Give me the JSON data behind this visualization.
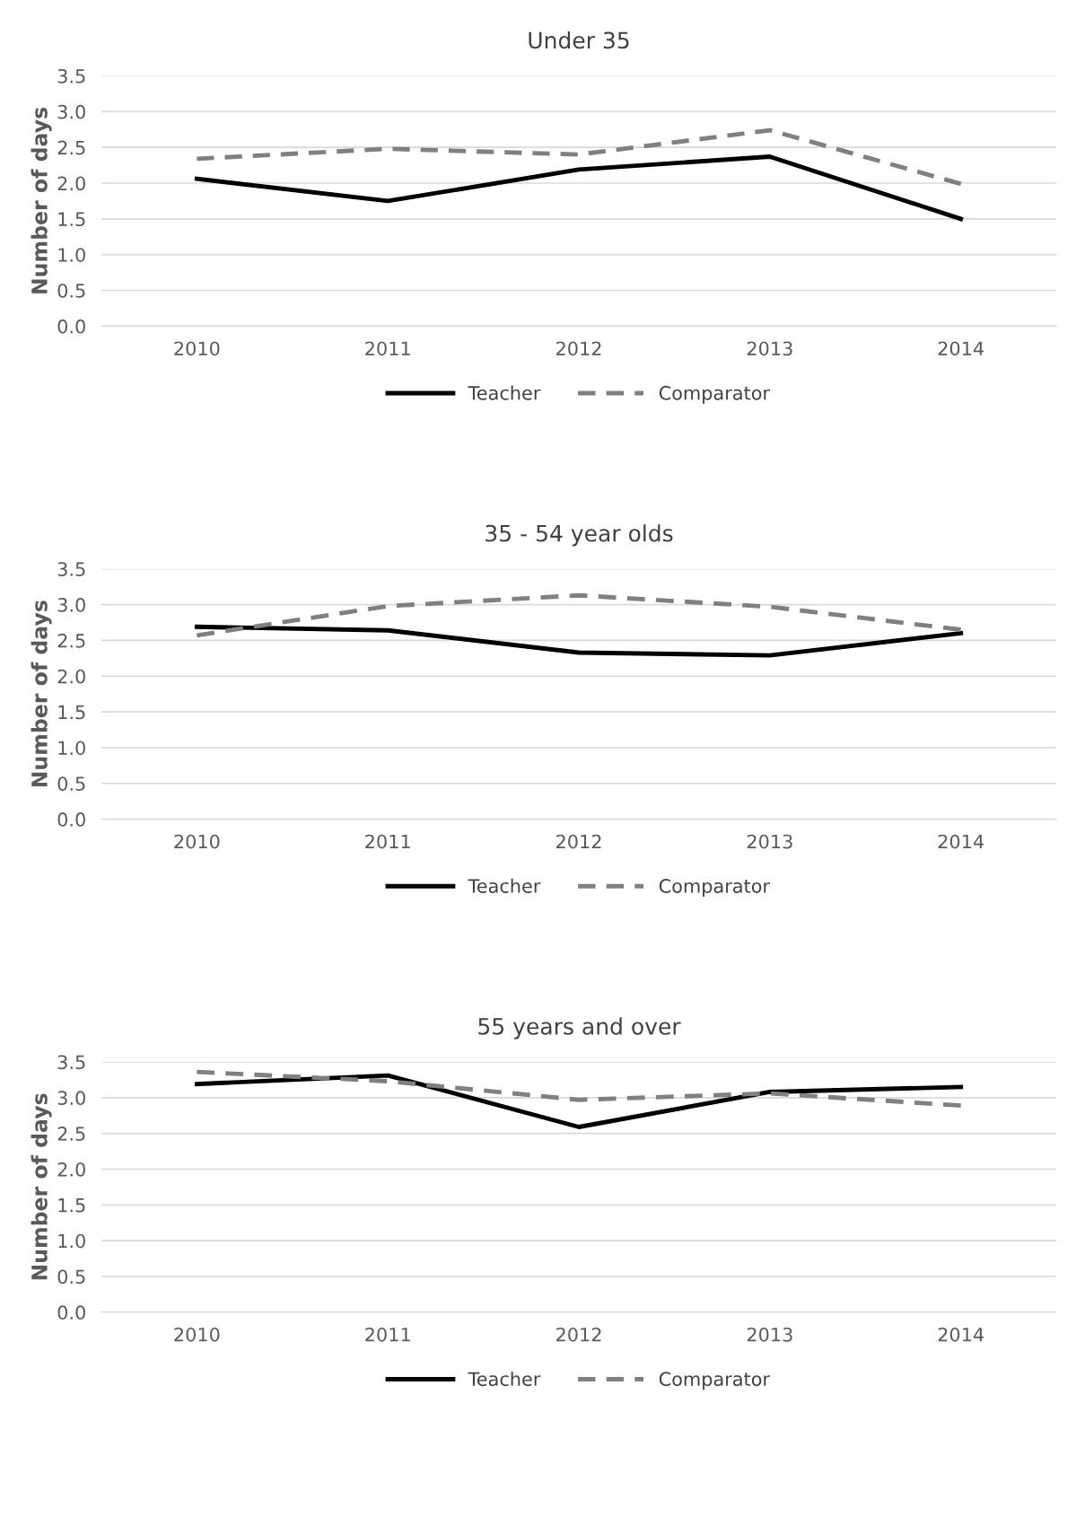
{
  "chart_data": [
    {
      "type": "line",
      "title": "Under 35",
      "ylabel": "Number of days",
      "categories": [
        "2010",
        "2011",
        "2012",
        "2013",
        "2014"
      ],
      "ylim": [
        0,
        3.5
      ],
      "yticks": [
        {
          "value": 0,
          "label": "0.0"
        },
        {
          "value": 0.5,
          "label": "0.5"
        },
        {
          "value": 1,
          "label": "1.0"
        },
        {
          "value": 1.5,
          "label": "1.5"
        },
        {
          "value": 2,
          "label": "2.0"
        },
        {
          "value": 2.5,
          "label": "2.5"
        },
        {
          "value": 3,
          "label": "3.0"
        },
        {
          "value": 3.5,
          "label": "3.5"
        }
      ],
      "grid": "y",
      "legend": "bottom",
      "series": [
        {
          "name": "Teacher",
          "color": "#000000",
          "line_style": "solid",
          "values": [
            2.06,
            1.75,
            2.19,
            2.37,
            1.5
          ]
        },
        {
          "name": "Comparator",
          "color": "#808080",
          "line_style": "dashed",
          "values": [
            2.34,
            2.48,
            2.4,
            2.74,
            1.99
          ]
        }
      ]
    },
    {
      "type": "line",
      "title": "35 - 54 year olds",
      "ylabel": "Number of days",
      "categories": [
        "2010",
        "2011",
        "2012",
        "2013",
        "2014"
      ],
      "ylim": [
        0,
        3.5
      ],
      "yticks": [
        {
          "value": 0,
          "label": "0.0"
        },
        {
          "value": 0.5,
          "label": "0.5"
        },
        {
          "value": 1,
          "label": "1.0"
        },
        {
          "value": 1.5,
          "label": "1.5"
        },
        {
          "value": 2,
          "label": "2.0"
        },
        {
          "value": 2.5,
          "label": "2.5"
        },
        {
          "value": 3,
          "label": "3.0"
        },
        {
          "value": 3.5,
          "label": "3.5"
        }
      ],
      "grid": "y",
      "legend": "bottom",
      "series": [
        {
          "name": "Teacher",
          "color": "#000000",
          "line_style": "solid",
          "values": [
            2.69,
            2.64,
            2.33,
            2.29,
            2.6
          ]
        },
        {
          "name": "Comparator",
          "color": "#808080",
          "line_style": "dashed",
          "values": [
            2.57,
            2.98,
            3.13,
            2.97,
            2.65
          ]
        }
      ]
    },
    {
      "type": "line",
      "title": "55 years and over",
      "ylabel": "Number of days",
      "categories": [
        "2010",
        "2011",
        "2012",
        "2013",
        "2014"
      ],
      "ylim": [
        0,
        3.5
      ],
      "yticks": [
        {
          "value": 0,
          "label": "0.0"
        },
        {
          "value": 0.5,
          "label": "0.5"
        },
        {
          "value": 1,
          "label": "1.0"
        },
        {
          "value": 1.5,
          "label": "1.5"
        },
        {
          "value": 2,
          "label": "2.0"
        },
        {
          "value": 2.5,
          "label": "2.5"
        },
        {
          "value": 3,
          "label": "3.0"
        },
        {
          "value": 3.5,
          "label": "3.5"
        }
      ],
      "grid": "y",
      "legend": "bottom",
      "series": [
        {
          "name": "Teacher",
          "color": "#000000",
          "line_style": "solid",
          "values": [
            3.19,
            3.31,
            2.59,
            3.08,
            3.15
          ]
        },
        {
          "name": "Comparator",
          "color": "#808080",
          "line_style": "dashed",
          "values": [
            3.36,
            3.23,
            2.97,
            3.06,
            2.89
          ]
        }
      ]
    }
  ]
}
